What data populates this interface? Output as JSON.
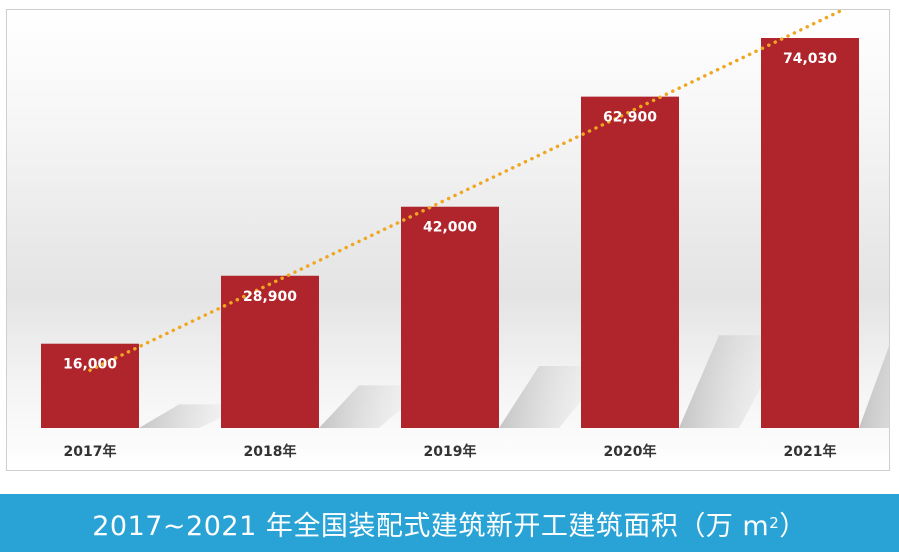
{
  "chart_data": {
    "type": "bar",
    "title": "2017~2021 年全国装配式建筑新开工建筑面积（万 m²）",
    "title_parts": {
      "main": "2017~2021 年全国装配式建筑新开工建筑面积（万 m",
      "sup": "2",
      "tail": "）"
    },
    "categories": [
      "2017年",
      "2018年",
      "2019年",
      "2020年",
      "2021年"
    ],
    "values": [
      16000,
      28900,
      42000,
      62900,
      74030
    ],
    "value_labels": [
      "16,000",
      "28,900",
      "42,000",
      "62,900",
      "74,030"
    ],
    "ylim": [
      0,
      80000
    ],
    "xlabel": "",
    "ylabel": "",
    "grid": false,
    "trendline": {
      "type": "linear",
      "style": "dotted"
    }
  },
  "colors": {
    "bar": "#b0242b",
    "trendline": "#f0a61f",
    "title_bar": "#29a3d6",
    "label_text": "#ffffff",
    "category_text": "#333333"
  }
}
